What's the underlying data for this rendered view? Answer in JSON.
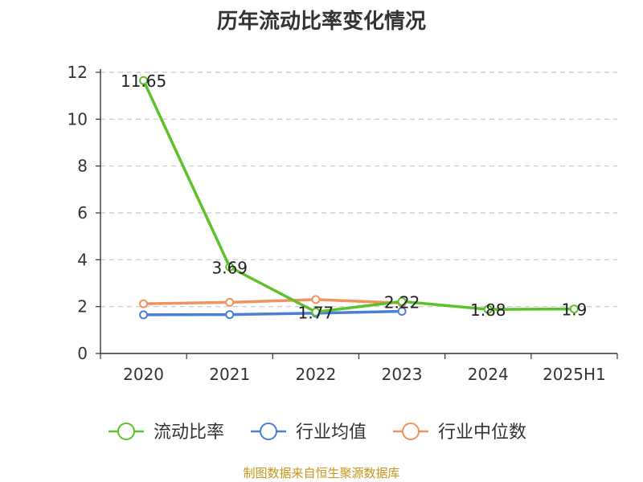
{
  "chart_data": {
    "type": "line",
    "title": "历年流动比率变化情况",
    "categories": [
      "2020",
      "2021",
      "2022",
      "2023",
      "2024",
      "2025H1"
    ],
    "ylim": [
      0,
      12
    ],
    "yticks": [
      0,
      2,
      4,
      6,
      8,
      10,
      12
    ],
    "grid": true,
    "legend_position": "bottom",
    "series": [
      {
        "name": "流动比率",
        "color": "#5cc12b",
        "values": [
          11.65,
          3.69,
          1.77,
          2.22,
          1.88,
          1.9
        ],
        "data_labels": [
          "11.65",
          "3.69",
          "1.77",
          "2.22",
          "1.88",
          "1.9"
        ]
      },
      {
        "name": "行业均值",
        "color": "#4a7fd6",
        "values": [
          1.65,
          1.66,
          1.72,
          1.8,
          null,
          null
        ]
      },
      {
        "name": "行业中位数",
        "color": "#f2925e",
        "values": [
          2.12,
          2.18,
          2.3,
          2.15,
          null,
          null
        ]
      }
    ]
  },
  "footer": {
    "source": "制图数据来自恒生聚源数据库"
  }
}
